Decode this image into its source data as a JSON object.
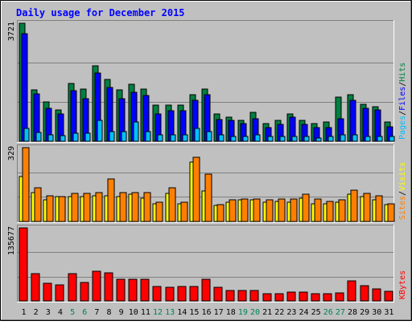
{
  "title": "Daily usage for December 2015",
  "colors": {
    "background": "#c0c0c0",
    "hits": "#008040",
    "files": "#0000ff",
    "pages": "#00c0ff",
    "visits": "#ffff00",
    "sites": "#ff8000",
    "kbytes": "#ff0000",
    "title": "#0000ff",
    "weekend_day": "#00805c",
    "weekday": "#000000"
  },
  "chart_data": [
    {
      "type": "bar",
      "title": "Daily usage for December 2015",
      "categories": [
        "1",
        "2",
        "3",
        "4",
        "5",
        "6",
        "7",
        "8",
        "9",
        "10",
        "11",
        "12",
        "13",
        "14",
        "15",
        "16",
        "17",
        "18",
        "19",
        "20",
        "21",
        "22",
        "23",
        "24",
        "25",
        "26",
        "27",
        "28",
        "29",
        "30",
        "31"
      ],
      "weekend_days": [
        "5",
        "6",
        "12",
        "13",
        "19",
        "20",
        "26",
        "27"
      ],
      "ymax_label": "3721",
      "ylim": [
        0,
        3721
      ],
      "grid": true,
      "legend": "right",
      "series": [
        {
          "name": "Hits",
          "values": [
            3721,
            1620,
            1250,
            980,
            1820,
            1650,
            2380,
            1950,
            1620,
            1800,
            1650,
            1150,
            1150,
            1150,
            1480,
            1650,
            860,
            750,
            650,
            920,
            550,
            650,
            850,
            650,
            550,
            600,
            1400,
            1470,
            1170,
            1100,
            600
          ]
        },
        {
          "name": "Files",
          "values": [
            3400,
            1500,
            1050,
            850,
            1600,
            1350,
            2150,
            1700,
            1350,
            1550,
            1450,
            850,
            950,
            950,
            1300,
            1480,
            680,
            650,
            550,
            720,
            420,
            520,
            770,
            520,
            420,
            420,
            700,
            1300,
            1030,
            980,
            450
          ]
        },
        {
          "name": "Pages",
          "values": [
            400,
            280,
            200,
            180,
            250,
            250,
            650,
            300,
            300,
            600,
            300,
            200,
            200,
            200,
            400,
            300,
            200,
            150,
            150,
            200,
            150,
            150,
            150,
            150,
            100,
            150,
            200,
            200,
            150,
            150,
            150
          ]
        }
      ],
      "legend_labels": [
        "Pages",
        "Files",
        "Hits"
      ]
    },
    {
      "type": "bar",
      "categories": [
        "1",
        "2",
        "3",
        "4",
        "5",
        "6",
        "7",
        "8",
        "9",
        "10",
        "11",
        "12",
        "13",
        "14",
        "15",
        "16",
        "17",
        "18",
        "19",
        "20",
        "21",
        "22",
        "23",
        "24",
        "25",
        "26",
        "27",
        "28",
        "29",
        "30",
        "31"
      ],
      "ymax_label": "329",
      "ylim": [
        0,
        329
      ],
      "grid": true,
      "legend": "right",
      "series": [
        {
          "name": "Visits",
          "values": [
            200,
            130,
            95,
            110,
            110,
            110,
            115,
            115,
            110,
            120,
            105,
            80,
            125,
            80,
            265,
            135,
            70,
            85,
            95,
            95,
            85,
            90,
            85,
            105,
            80,
            80,
            85,
            120,
            110,
            95,
            75
          ]
        },
        {
          "name": "Sites",
          "values": [
            329,
            150,
            115,
            110,
            125,
            125,
            130,
            190,
            130,
            130,
            130,
            85,
            150,
            85,
            285,
            210,
            75,
            95,
            100,
            100,
            95,
            100,
            100,
            120,
            100,
            90,
            95,
            140,
            125,
            115,
            80
          ]
        }
      ],
      "legend_labels": [
        "Sites",
        "Visits"
      ]
    },
    {
      "type": "bar",
      "categories": [
        "1",
        "2",
        "3",
        "4",
        "5",
        "6",
        "7",
        "8",
        "9",
        "10",
        "11",
        "12",
        "13",
        "14",
        "15",
        "16",
        "17",
        "18",
        "19",
        "20",
        "21",
        "22",
        "23",
        "24",
        "25",
        "26",
        "27",
        "28",
        "29",
        "30",
        "31"
      ],
      "ymax_label": "135677",
      "ylim": [
        0,
        135677
      ],
      "grid": true,
      "legend": "right",
      "series": [
        {
          "name": "KBytes",
          "values": [
            135677,
            50000,
            33000,
            30000,
            50000,
            35000,
            55000,
            52000,
            40000,
            40000,
            40000,
            27000,
            25000,
            27000,
            27000,
            40000,
            25000,
            20000,
            20000,
            20000,
            13000,
            14000,
            16000,
            16000,
            13000,
            13000,
            15000,
            37000,
            28000,
            23000,
            18000
          ]
        }
      ],
      "legend_labels": [
        "KBytes"
      ]
    }
  ]
}
